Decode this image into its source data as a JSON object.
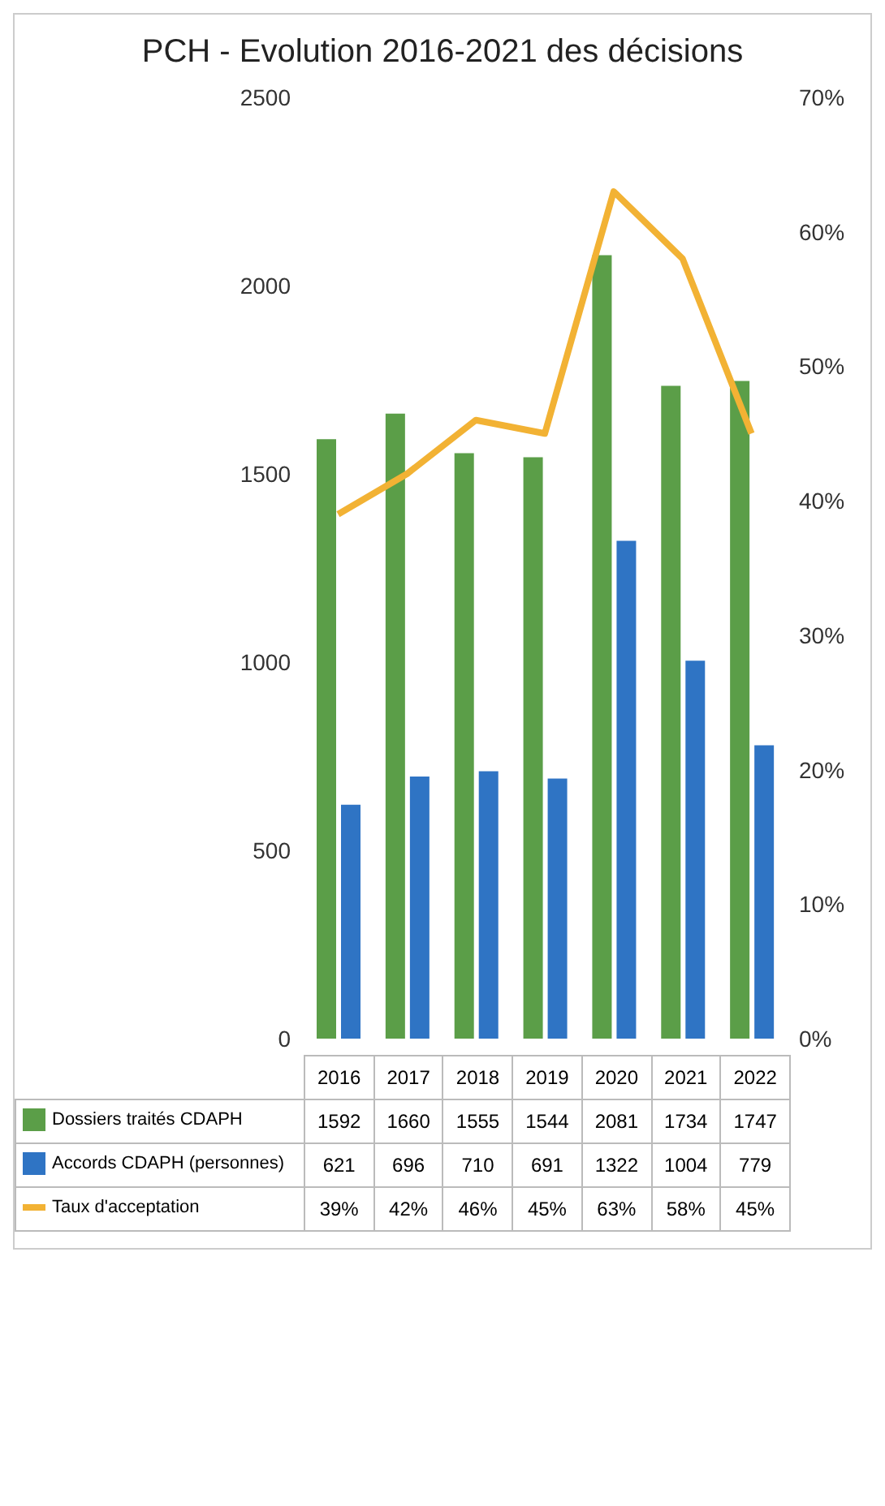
{
  "chart_data": {
    "type": "bar",
    "title": "PCH - Evolution 2016-2021 des décisions",
    "categories": [
      "2016",
      "2017",
      "2018",
      "2019",
      "2020",
      "2021",
      "2022"
    ],
    "series": [
      {
        "name": "Dossiers traités CDAPH",
        "color": "#5b9e48",
        "values": [
          1592,
          1660,
          1555,
          1544,
          2081,
          1734,
          1747
        ]
      },
      {
        "name": "Accords CDAPH (personnes)",
        "color": "#2f74c4",
        "values": [
          621,
          696,
          710,
          691,
          1322,
          1004,
          779
        ]
      },
      {
        "name": "Taux d'acceptation",
        "type": "line",
        "axis": "y2",
        "color": "#f2b234",
        "values": [
          39,
          42,
          46,
          45,
          63,
          58,
          45
        ],
        "value_labels": [
          "39%",
          "42%",
          "46%",
          "45%",
          "63%",
          "58%",
          "45%"
        ]
      }
    ],
    "ylim": [
      0,
      2500
    ],
    "yticks": [
      0,
      500,
      1000,
      1500,
      2000,
      2500
    ],
    "y2lim": [
      0,
      70
    ],
    "y2ticks": [
      {
        "value": 0,
        "label": "0%"
      },
      {
        "value": 10,
        "label": "10%"
      },
      {
        "value": 20,
        "label": "20%"
      },
      {
        "value": 30,
        "label": "30%"
      },
      {
        "value": 40,
        "label": "40%"
      },
      {
        "value": 50,
        "label": "50%"
      },
      {
        "value": 60,
        "label": "60%"
      },
      {
        "value": 70,
        "label": "70%"
      }
    ],
    "grid": false,
    "legend": "bottom",
    "data_labels": true,
    "marker": "none"
  }
}
